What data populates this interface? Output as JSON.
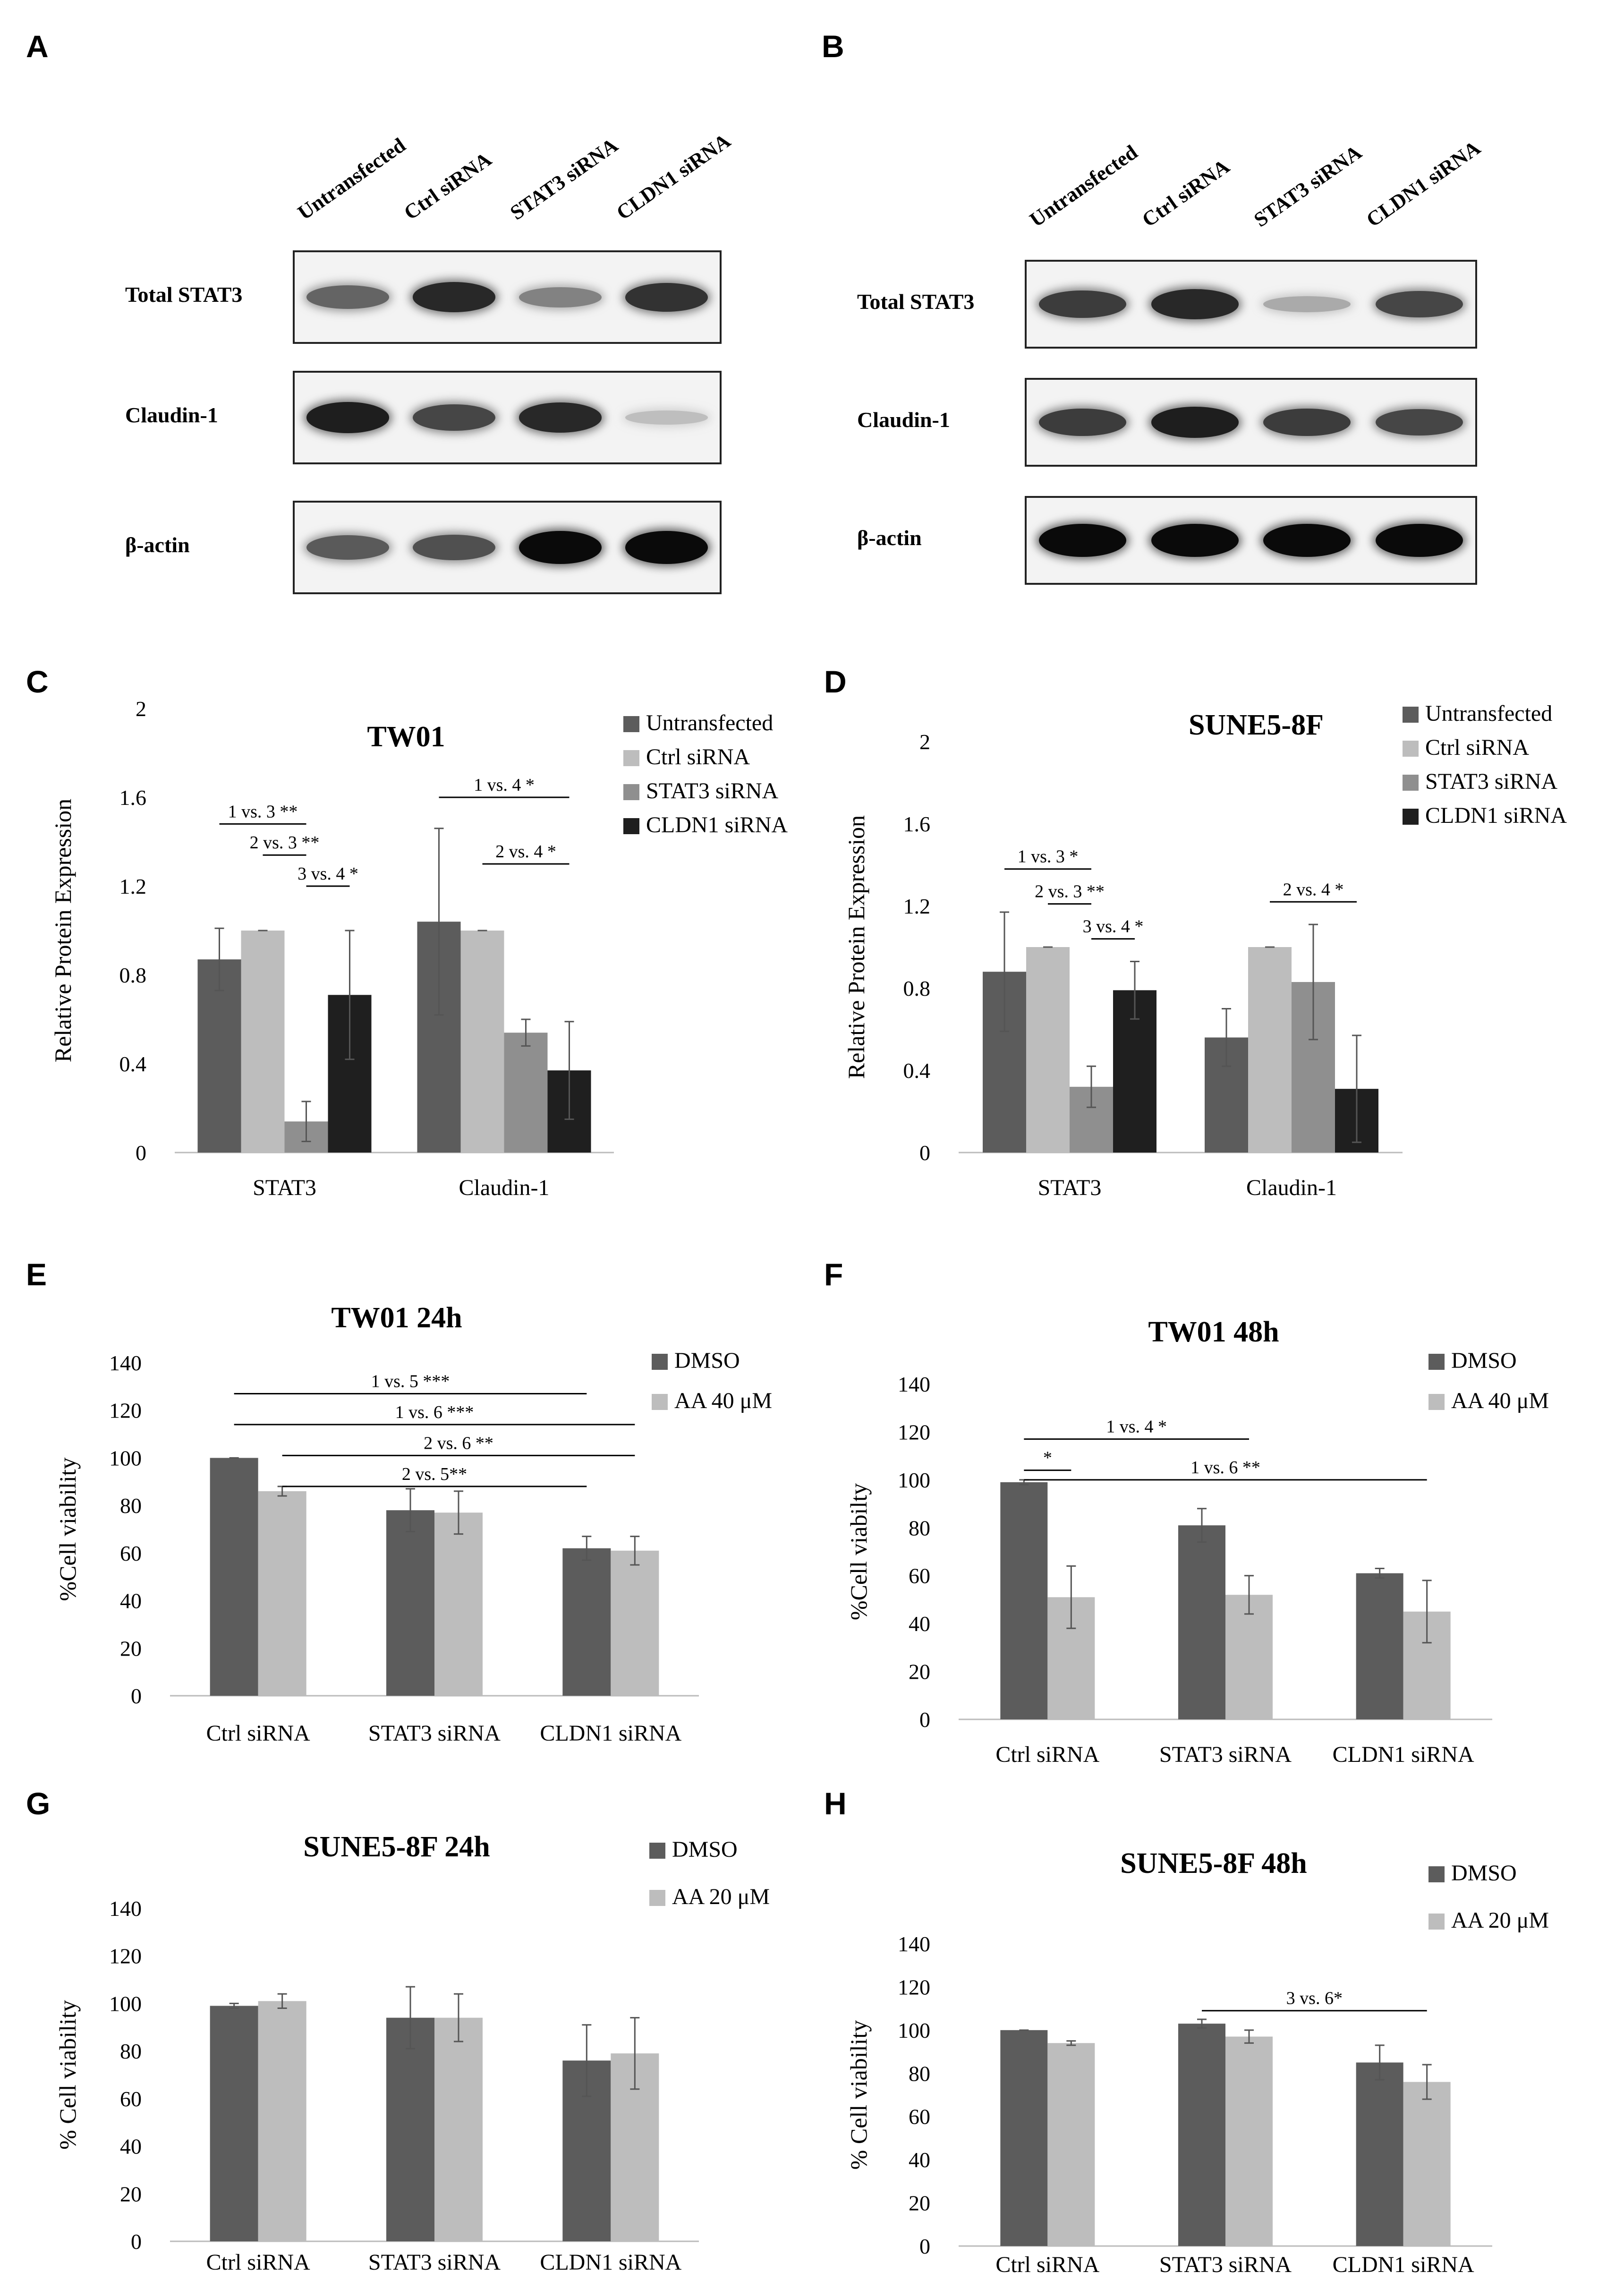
{
  "panels": {
    "A": "A",
    "B": "B",
    "C": "C",
    "D": "D",
    "E": "E",
    "F": "F",
    "G": "G",
    "H": "H"
  },
  "blots": [
    {
      "id": "A",
      "lanes": [
        "Untransfected",
        "Ctrl siRNA",
        "STAT3 siRNA",
        "CLDN1 siRNA"
      ],
      "rows": [
        {
          "label": "Total STAT3",
          "intensity": [
            0.55,
            0.85,
            0.4,
            0.8
          ]
        },
        {
          "label": "Claudin-1",
          "intensity": [
            0.9,
            0.7,
            0.85,
            0.1
          ]
        },
        {
          "label": "β-actin",
          "intensity": [
            0.6,
            0.65,
            1.0,
            1.0
          ]
        }
      ]
    },
    {
      "id": "B",
      "lanes": [
        "Untransfected",
        "Ctrl siRNA",
        "STAT3 siRNA",
        "CLDN1 siRNA"
      ],
      "rows": [
        {
          "label": "Total STAT3",
          "intensity": [
            0.75,
            0.85,
            0.2,
            0.7
          ]
        },
        {
          "label": "Claudin-1",
          "intensity": [
            0.75,
            0.9,
            0.75,
            0.7
          ]
        },
        {
          "label": "β-actin",
          "intensity": [
            1.0,
            1.0,
            1.0,
            1.0
          ]
        }
      ]
    }
  ],
  "chart_data": [
    {
      "id": "C",
      "type": "bar",
      "title": "TW01",
      "ylabel": "Relative Protein Expression",
      "ylim": [
        0,
        2
      ],
      "yticks": [
        "0",
        "0.4",
        "0.8",
        "1.2",
        "1.6",
        "2"
      ],
      "ytick_values": [
        0,
        0.4,
        0.8,
        1.2,
        1.6,
        2
      ],
      "categories": [
        "STAT3",
        "Claudin-1"
      ],
      "series": [
        {
          "name": "Untransfected",
          "color": "#5c5c5c",
          "values": [
            0.87,
            1.04
          ],
          "errors": [
            0.14,
            0.42
          ]
        },
        {
          "name": "Ctrl siRNA",
          "color": "#bdbdbd",
          "values": [
            1.0,
            1.0
          ],
          "errors": [
            0.0,
            0.0
          ]
        },
        {
          "name": "STAT3 siRNA",
          "color": "#8f8f8f",
          "values": [
            0.14,
            0.54
          ],
          "errors": [
            0.09,
            0.06
          ]
        },
        {
          "name": "CLDN1 siRNA",
          "color": "#1f1f1f",
          "values": [
            0.71,
            0.37
          ],
          "errors": [
            0.29,
            0.22
          ]
        }
      ],
      "annotations": [
        {
          "text": "1 vs. 3 **",
          "category": 0,
          "from": 0,
          "to": 2,
          "y": 1.48
        },
        {
          "text": "2 vs. 3 **",
          "category": 0,
          "from": 1,
          "to": 2,
          "y": 1.34
        },
        {
          "text": "3 vs. 4 *",
          "category": 0,
          "from": 2,
          "to": 3,
          "y": 1.2
        },
        {
          "text": "1 vs. 4 *",
          "category": 1,
          "from": 0,
          "to": 3,
          "y": 1.6
        },
        {
          "text": "2 vs. 4 *",
          "category": 1,
          "from": 1,
          "to": 3,
          "y": 1.3
        }
      ],
      "legend": "right"
    },
    {
      "id": "D",
      "type": "bar",
      "title": "SUNE5-8F",
      "ylabel": "Relative Protein Expression",
      "ylim": [
        0,
        2
      ],
      "yticks": [
        "0",
        "0.4",
        "0.8",
        "1.2",
        "1.6",
        "2"
      ],
      "ytick_values": [
        0,
        0.4,
        0.8,
        1.2,
        1.6,
        2
      ],
      "categories": [
        "STAT3",
        "Claudin-1"
      ],
      "series": [
        {
          "name": "Untransfected",
          "color": "#5c5c5c",
          "values": [
            0.88,
            0.56
          ],
          "errors": [
            0.29,
            0.14
          ]
        },
        {
          "name": "Ctrl siRNA",
          "color": "#bdbdbd",
          "values": [
            1.0,
            1.0
          ],
          "errors": [
            0.0,
            0.0
          ]
        },
        {
          "name": "STAT3 siRNA",
          "color": "#8f8f8f",
          "values": [
            0.32,
            0.83
          ],
          "errors": [
            0.1,
            0.28
          ]
        },
        {
          "name": "CLDN1 siRNA",
          "color": "#1f1f1f",
          "values": [
            0.79,
            0.31
          ],
          "errors": [
            0.14,
            0.26
          ]
        }
      ],
      "annotations": [
        {
          "text": "1 vs. 3 *",
          "category": 0,
          "from": 0,
          "to": 2,
          "y": 1.38
        },
        {
          "text": "2 vs. 3 **",
          "category": 0,
          "from": 1,
          "to": 2,
          "y": 1.21
        },
        {
          "text": "3 vs. 4 *",
          "category": 0,
          "from": 2,
          "to": 3,
          "y": 1.04
        },
        {
          "text": "2 vs. 4 *",
          "category": 1,
          "from": 1,
          "to": 3,
          "y": 1.22
        }
      ],
      "legend": "right"
    },
    {
      "id": "E",
      "type": "bar",
      "title": "TW01 24h",
      "ylabel": "%Cell viability",
      "ylim": [
        0,
        140
      ],
      "yticks": [
        "0",
        "20",
        "40",
        "60",
        "80",
        "100",
        "120",
        "140"
      ],
      "ytick_values": [
        0,
        20,
        40,
        60,
        80,
        100,
        120,
        140
      ],
      "categories": [
        "Ctrl siRNA",
        "STAT3 siRNA",
        "CLDN1 siRNA"
      ],
      "series": [
        {
          "name": "DMSO",
          "color": "#5c5c5c",
          "values": [
            100,
            78,
            62
          ],
          "errors": [
            0,
            9,
            5
          ]
        },
        {
          "name": "AA 40 μM",
          "color": "#bdbdbd",
          "values": [
            86,
            77,
            61
          ],
          "errors": [
            2,
            9,
            6
          ]
        }
      ],
      "annotations": [
        {
          "text": "1 vs. 5 ***",
          "from": [
            0,
            0
          ],
          "to": [
            2,
            0
          ],
          "y": 127
        },
        {
          "text": "1 vs. 6 ***",
          "from": [
            0,
            0
          ],
          "to": [
            2,
            1
          ],
          "y": 114
        },
        {
          "text": "2 vs. 6 **",
          "from": [
            0,
            1
          ],
          "to": [
            2,
            1
          ],
          "y": 101
        },
        {
          "text": "2 vs. 5**",
          "from": [
            0,
            1
          ],
          "to": [
            2,
            0
          ],
          "y": 88
        }
      ],
      "legend": "top-right"
    },
    {
      "id": "F",
      "type": "bar",
      "title": "TW01 48h",
      "ylabel": "%Cell viabilty",
      "ylim": [
        0,
        140
      ],
      "yticks": [
        "0",
        "20",
        "40",
        "60",
        "80",
        "100",
        "120",
        "140"
      ],
      "ytick_values": [
        0,
        20,
        40,
        60,
        80,
        100,
        120,
        140
      ],
      "categories": [
        "Ctrl siRNA",
        "STAT3 siRNA",
        "CLDN1 siRNA"
      ],
      "series": [
        {
          "name": "DMSO",
          "color": "#5c5c5c",
          "values": [
            99,
            81,
            61
          ],
          "errors": [
            1,
            7,
            2
          ]
        },
        {
          "name": "AA 40 μM",
          "color": "#bdbdbd",
          "values": [
            51,
            52,
            45
          ],
          "errors": [
            13,
            8,
            13
          ]
        }
      ],
      "annotations": [
        {
          "text": "1 vs. 4 *",
          "from": [
            0,
            0
          ],
          "to": [
            1,
            1
          ],
          "y": 117
        },
        {
          "text": "*",
          "from": [
            0,
            0
          ],
          "to": [
            0,
            1
          ],
          "y": 104
        },
        {
          "text": "1 vs. 6 **",
          "from": [
            0,
            0
          ],
          "to": [
            2,
            1
          ],
          "y": 100
        }
      ],
      "legend": "top-right"
    },
    {
      "id": "G",
      "type": "bar",
      "title": "SUNE5-8F 24h",
      "ylabel": "% Cell viability",
      "ylim": [
        0,
        140
      ],
      "yticks": [
        "0",
        "20",
        "40",
        "60",
        "80",
        "100",
        "120",
        "140"
      ],
      "ytick_values": [
        0,
        20,
        40,
        60,
        80,
        100,
        120,
        140
      ],
      "categories": [
        "Ctrl siRNA",
        "STAT3 siRNA",
        "CLDN1 siRNA"
      ],
      "series": [
        {
          "name": "DMSO",
          "color": "#5c5c5c",
          "values": [
            99,
            94,
            76
          ],
          "errors": [
            1,
            13,
            15
          ]
        },
        {
          "name": "AA 20 μM",
          "color": "#bdbdbd",
          "values": [
            101,
            94,
            79
          ],
          "errors": [
            3,
            10,
            15
          ]
        }
      ],
      "annotations": [],
      "legend": "top-right"
    },
    {
      "id": "H",
      "type": "bar",
      "title": "SUNE5-8F 48h",
      "ylabel": "% Cell viability",
      "ylim": [
        0,
        140
      ],
      "yticks": [
        "0",
        "20",
        "40",
        "60",
        "80",
        "100",
        "120",
        "140"
      ],
      "ytick_values": [
        0,
        20,
        40,
        60,
        80,
        100,
        120,
        140
      ],
      "categories": [
        "Ctrl siRNA",
        "STAT3 siRNA",
        "CLDN1 siRNA"
      ],
      "series": [
        {
          "name": "DMSO",
          "color": "#5c5c5c",
          "values": [
            100,
            103,
            85
          ],
          "errors": [
            0,
            2,
            8
          ]
        },
        {
          "name": "AA 20 μM",
          "color": "#bdbdbd",
          "values": [
            94,
            97,
            76
          ],
          "errors": [
            1,
            3,
            8
          ]
        }
      ],
      "annotations": [
        {
          "text": "3 vs. 6*",
          "from": [
            1,
            0
          ],
          "to": [
            2,
            1
          ],
          "y": 109
        }
      ],
      "legend": "top-right"
    }
  ]
}
